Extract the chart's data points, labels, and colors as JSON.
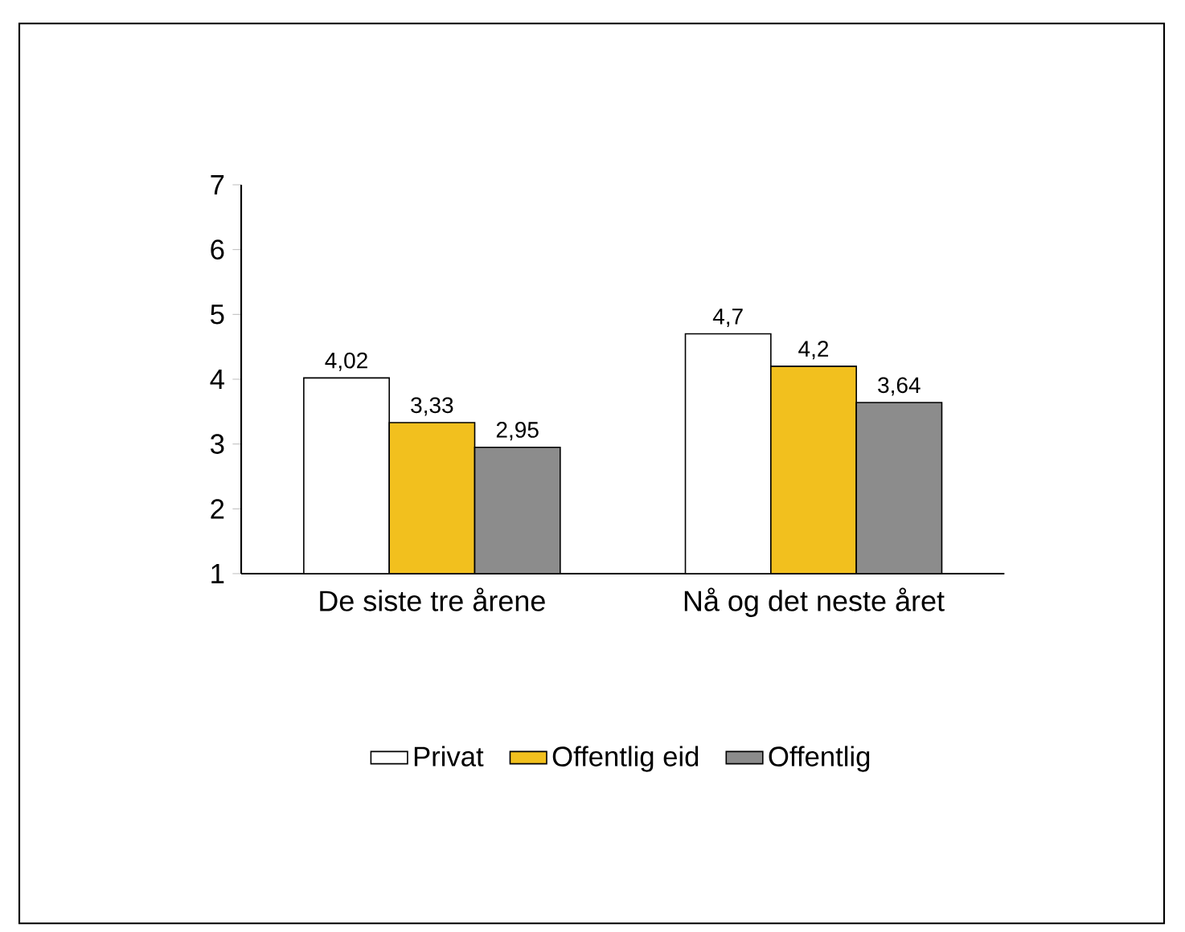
{
  "chart_data": {
    "type": "bar",
    "categories": [
      "De siste tre årene",
      "Nå og det neste året"
    ],
    "series": [
      {
        "name": "Privat",
        "color": "#ffffff",
        "values": [
          4.02,
          4.7
        ],
        "value_labels": [
          "4,02",
          "4,7"
        ]
      },
      {
        "name": "Offentlig eid",
        "color": "#f2c01e",
        "values": [
          3.33,
          4.2
        ],
        "value_labels": [
          "3,33",
          "4,2"
        ]
      },
      {
        "name": "Offentlig",
        "color": "#8c8c8c",
        "values": [
          2.95,
          3.64
        ],
        "value_labels": [
          "2,95",
          "3,64"
        ]
      }
    ],
    "ylim": [
      1,
      7
    ],
    "yticks": [
      1,
      2,
      3,
      4,
      5,
      6,
      7
    ],
    "grid": false,
    "legend": "bottom"
  }
}
